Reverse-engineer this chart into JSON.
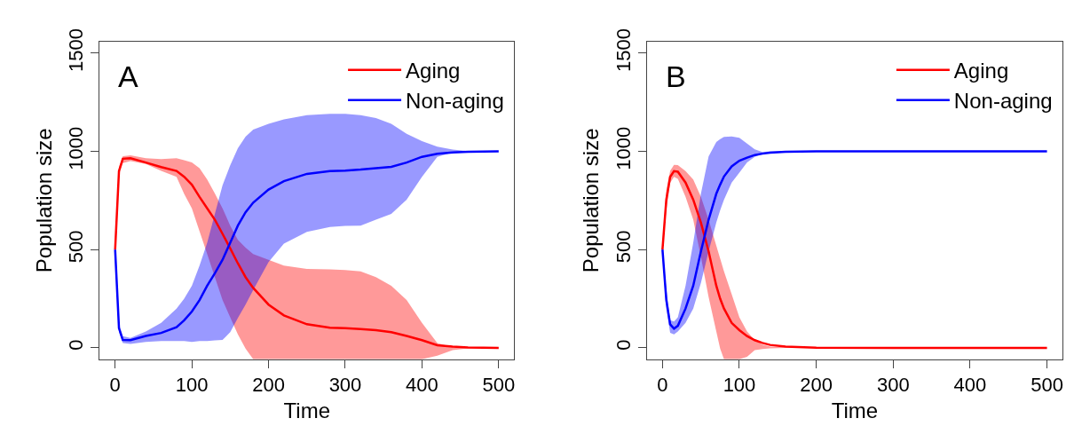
{
  "chart_data": [
    {
      "type": "line",
      "annotations": [
        "A"
      ],
      "xlabel": "Time",
      "ylabel": "Population size",
      "xlim": [
        -20,
        520
      ],
      "ylim": [
        -58,
        1558
      ],
      "xticks": [
        0,
        100,
        200,
        300,
        400,
        500
      ],
      "yticks": [
        0,
        500,
        1000,
        1500
      ],
      "grid": false,
      "legend": "top right",
      "line_style": "solid",
      "marker": "none",
      "x": [
        0,
        5,
        10,
        20,
        40,
        60,
        80,
        90,
        100,
        110,
        120,
        130,
        140,
        150,
        160,
        170,
        180,
        200,
        220,
        250,
        280,
        300,
        320,
        340,
        360,
        380,
        400,
        420,
        440,
        460,
        500
      ],
      "series": [
        {
          "name": "Aging",
          "color": "#ff0000",
          "values": [
            500,
            900,
            962,
            965,
            943,
            920,
            900,
            870,
            830,
            768,
            710,
            652,
            580,
            506,
            430,
            360,
            305,
            220,
            165,
            120,
            102,
            100,
            96,
            90,
            80,
            61,
            39,
            13,
            6,
            2,
            0
          ],
          "upper": [
            500,
            920,
            975,
            980,
            965,
            960,
            965,
            955,
            943,
            914,
            856,
            785,
            710,
            622,
            550,
            510,
            477,
            448,
            418,
            402,
            399,
            396,
            389,
            360,
            316,
            243,
            127,
            25,
            3,
            1,
            0
          ],
          "lower": [
            500,
            880,
            940,
            950,
            935,
            900,
            870,
            783,
            710,
            593,
            477,
            360,
            243,
            156,
            69,
            -4,
            -58,
            -58,
            -58,
            -58,
            -58,
            -58,
            -58,
            -58,
            -58,
            -58,
            -58,
            -40,
            -12,
            -3,
            0
          ]
        },
        {
          "name": "Non-aging",
          "color": "#0000ff",
          "values": [
            500,
            100,
            40,
            39,
            61,
            76,
            105,
            140,
            185,
            243,
            316,
            380,
            448,
            535,
            622,
            690,
            739,
            805,
            848,
            885,
            899,
            902,
            907,
            914,
            921,
            943,
            972,
            987,
            994,
            998,
            1000
          ],
          "upper": [
            500,
            120,
            60,
            50,
            83,
            127,
            200,
            250,
            316,
            418,
            535,
            681,
            827,
            929,
            1016,
            1074,
            1111,
            1140,
            1162,
            1184,
            1191,
            1191,
            1184,
            1169,
            1140,
            1089,
            1052,
            1023,
            1009,
            1001,
            1000
          ],
          "lower": [
            500,
            80,
            25,
            20,
            30,
            35,
            35,
            35,
            30,
            35,
            35,
            38,
            40,
            80,
            152,
            220,
            294,
            437,
            530,
            590,
            615,
            620,
            622,
            652,
            681,
            754,
            870,
            972,
            994,
            998,
            1000
          ]
        }
      ]
    },
    {
      "type": "line",
      "annotations": [
        "B"
      ],
      "xlabel": "Time",
      "ylabel": "Population size",
      "xlim": [
        -20,
        520
      ],
      "ylim": [
        -58,
        1558
      ],
      "xticks": [
        0,
        100,
        200,
        300,
        400,
        500
      ],
      "yticks": [
        0,
        500,
        1000,
        1500
      ],
      "grid": false,
      "legend": "top right",
      "line_style": "solid",
      "marker": "none",
      "x": [
        0,
        5,
        10,
        15,
        20,
        30,
        40,
        50,
        60,
        70,
        75,
        80,
        90,
        100,
        110,
        120,
        130,
        140,
        160,
        200,
        300,
        400,
        500
      ],
      "series": [
        {
          "name": "Aging",
          "color": "#ff0000",
          "values": [
            500,
            754,
            870,
            899,
            896,
            841,
            754,
            637,
            491,
            316,
            250,
            200,
            127,
            90,
            60,
            39,
            25,
            15,
            6,
            1,
            0,
            0,
            0
          ],
          "upper": [
            500,
            800,
            900,
            931,
            930,
            899,
            856,
            768,
            652,
            520,
            455,
            389,
            273,
            156,
            83,
            39,
            17,
            7,
            3,
            0,
            0,
            0,
            0
          ],
          "lower": [
            500,
            700,
            840,
            870,
            860,
            768,
            652,
            462,
            258,
            83,
            -4,
            -58,
            -58,
            -58,
            -45,
            -12,
            -6,
            -3,
            0,
            0,
            0,
            0,
            0
          ]
        },
        {
          "name": "Non-aging",
          "color": "#0000ff",
          "values": [
            500,
            243,
            120,
            98,
            112,
            200,
            316,
            491,
            652,
            784,
            830,
            872,
            923,
            952,
            968,
            981,
            988,
            993,
            998,
            1000,
            1000,
            1000,
            1000
          ],
          "upper": [
            500,
            300,
            141,
            134,
            156,
            316,
            535,
            784,
            974,
            1047,
            1062,
            1073,
            1076,
            1069,
            1039,
            1010,
            996,
            1000,
            1000,
            1000,
            1000,
            1000,
            1000
          ],
          "lower": [
            500,
            200,
            76,
            69,
            83,
            127,
            200,
            331,
            491,
            637,
            700,
            754,
            841,
            892,
            943,
            972,
            990,
            997,
            999,
            1000,
            1000,
            1000,
            1000
          ]
        }
      ]
    }
  ]
}
